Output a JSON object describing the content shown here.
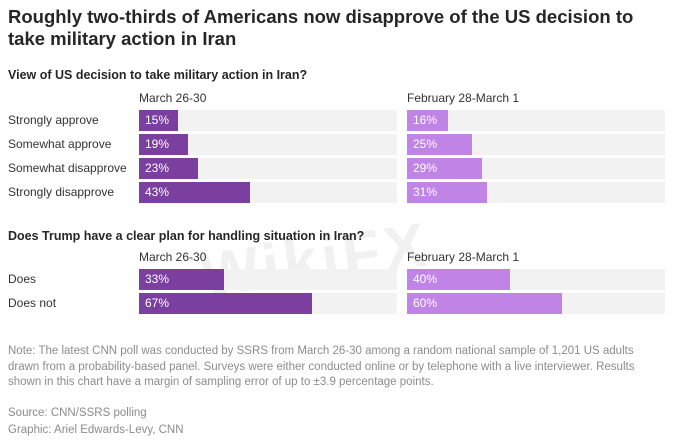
{
  "title": "Roughly two-thirds of Americans now disapprove of the US decision to take military action in Iran",
  "colors": {
    "left_bar": "#7b3fa0",
    "right_bar": "#c084e6",
    "track": "#f2f2f2"
  },
  "watermark": "WikiFX",
  "chart_data": [
    {
      "type": "bar",
      "orientation": "horizontal",
      "title": "View of US decision to take military action in Iran?",
      "categories": [
        "Strongly approve",
        "Somewhat approve",
        "Somewhat disapprove",
        "Strongly disapprove"
      ],
      "xlim": [
        0,
        100
      ],
      "series": [
        {
          "name": "March 26-30",
          "values": [
            15,
            19,
            23,
            43
          ],
          "labels": [
            "15%",
            "19%",
            "23%",
            "43%"
          ]
        },
        {
          "name": "February 28-March 1",
          "values": [
            16,
            25,
            29,
            31
          ],
          "labels": [
            "16%",
            "25%",
            "29%",
            "31%"
          ]
        }
      ]
    },
    {
      "type": "bar",
      "orientation": "horizontal",
      "title": "Does Trump have a clear plan for handling situation in Iran?",
      "categories": [
        "Does",
        "Does not"
      ],
      "xlim": [
        0,
        100
      ],
      "series": [
        {
          "name": "March 26-30",
          "values": [
            33,
            67
          ],
          "labels": [
            "33%",
            "67%"
          ]
        },
        {
          "name": "February 28-March 1",
          "values": [
            40,
            60
          ],
          "labels": [
            "40%",
            "60%"
          ]
        }
      ]
    }
  ],
  "note": "Note: The latest CNN poll was conducted by SSRS from March 26-30 among a random national sample of 1,201 US adults drawn from a probability-based panel. Surveys were either conducted online or by telephone with a live interviewer. Results shown in this chart have a margin of sampling error of up to ±3.9 percentage points.",
  "source": "Source: CNN/SSRS polling",
  "graphic": "Graphic: Ariel Edwards-Levy, CNN"
}
